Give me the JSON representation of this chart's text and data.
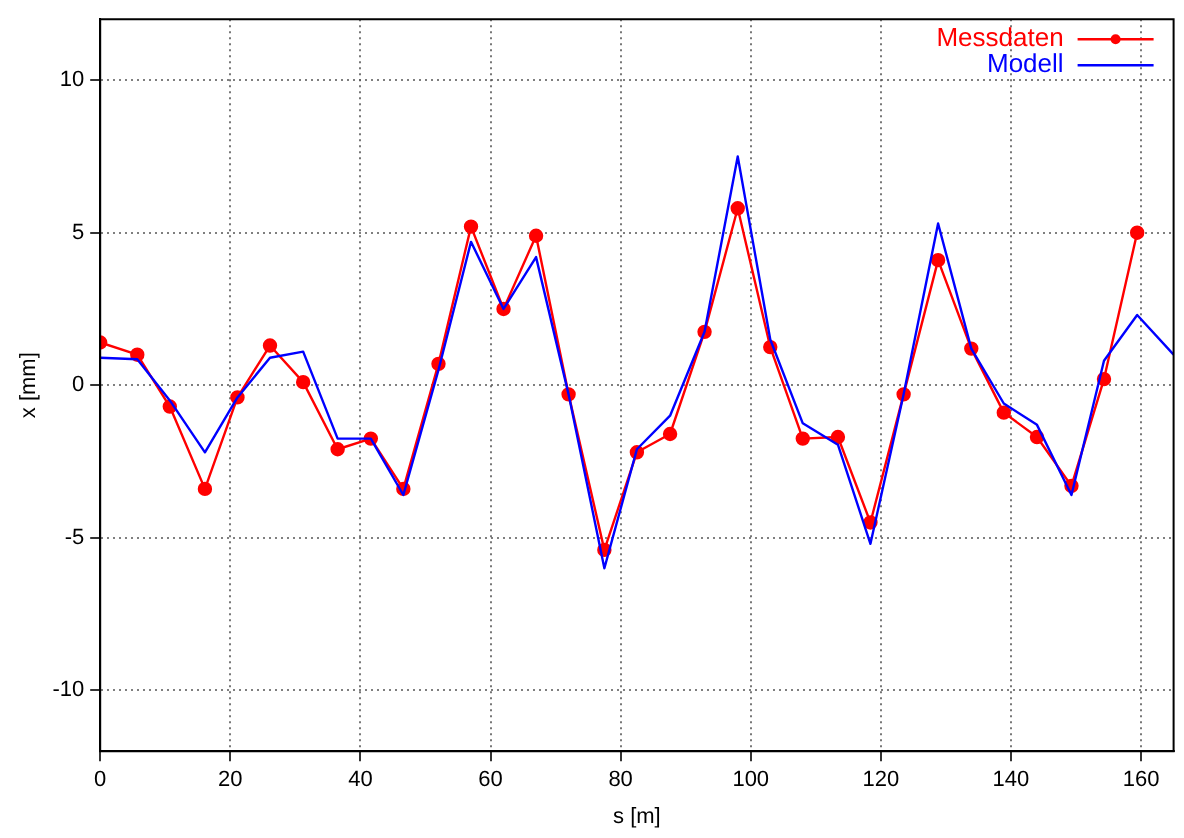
{
  "chart_data": {
    "type": "line",
    "xlabel": "s [m]",
    "ylabel": "x [mm]",
    "xlim": [
      0,
      165
    ],
    "xticks": [
      0,
      20,
      40,
      60,
      80,
      100,
      120,
      140,
      160
    ],
    "ylim": [
      -12,
      12
    ],
    "yticks": [
      -10,
      -5,
      0,
      5,
      10
    ],
    "grid": true,
    "legend": "top right",
    "series": [
      {
        "name": "Messdaten",
        "color": "#ff0000",
        "marker": "circle",
        "x": [
          0,
          5.7,
          10.7,
          16.1,
          21.1,
          26.1,
          31.2,
          36.5,
          41.6,
          46.6,
          52,
          57,
          62,
          67,
          72,
          77.5,
          82.5,
          87.6,
          92.9,
          98,
          103,
          108,
          113.4,
          118.4,
          123.5,
          128.8,
          133.9,
          138.9,
          144,
          149.3,
          154.3,
          159.4
        ],
        "values": [
          1.4,
          1.0,
          -0.7,
          -3.4,
          -0.4,
          1.3,
          0.1,
          -2.1,
          -1.75,
          -3.4,
          0.7,
          5.2,
          2.5,
          4.9,
          -0.3,
          -5.4,
          -2.2,
          -1.6,
          1.75,
          5.8,
          1.25,
          -1.75,
          -1.7,
          -4.5,
          -0.3,
          4.1,
          1.2,
          -0.9,
          -1.7,
          -3.3,
          0.2,
          5.0
        ]
      },
      {
        "name": "Modell",
        "color": "#0000ff",
        "marker": "none",
        "x": [
          0,
          5.7,
          10.7,
          16.1,
          21.1,
          26.1,
          31.2,
          36.5,
          41.6,
          46.6,
          52,
          57,
          62,
          67,
          72,
          77.5,
          82.5,
          87.6,
          92.9,
          98,
          103,
          108,
          113.4,
          118.4,
          123.5,
          128.8,
          133.9,
          138.9,
          144,
          149.3,
          154.3,
          159.4,
          165
        ],
        "values": [
          0.9,
          0.85,
          -0.5,
          -2.2,
          -0.4,
          0.9,
          1.1,
          -1.75,
          -1.75,
          -3.6,
          0.5,
          4.7,
          2.5,
          4.2,
          -0.3,
          -6.0,
          -2.1,
          -1.0,
          1.75,
          7.5,
          1.5,
          -1.25,
          -1.95,
          -5.2,
          -0.3,
          5.3,
          1.2,
          -0.6,
          -1.3,
          -3.6,
          0.8,
          2.3,
          1.0
        ]
      }
    ]
  }
}
